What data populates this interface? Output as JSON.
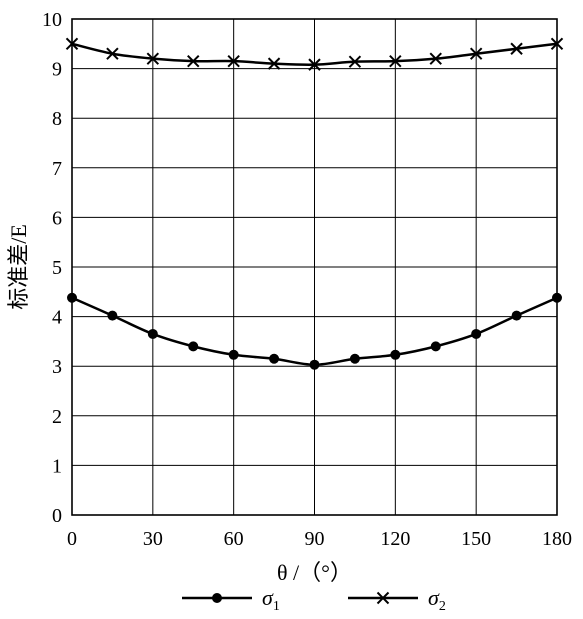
{
  "chart_data": {
    "type": "line",
    "title": "",
    "xlabel": "θ /（°）",
    "ylabel": "标准差/E",
    "xlim": [
      0,
      180
    ],
    "ylim": [
      0,
      10
    ],
    "xticks": [
      0,
      30,
      60,
      90,
      120,
      150,
      180
    ],
    "yticks": [
      0,
      1,
      2,
      3,
      4,
      5,
      6,
      7,
      8,
      9,
      10
    ],
    "grid": true,
    "legend_position": "bottom",
    "x": [
      0,
      15,
      30,
      45,
      60,
      75,
      90,
      105,
      120,
      135,
      150,
      165,
      180
    ],
    "series": [
      {
        "name": "σ1",
        "label_main": "σ",
        "label_sub": "1",
        "marker": "circle",
        "color": "#000000",
        "values": [
          4.38,
          4.02,
          3.65,
          3.4,
          3.23,
          3.15,
          3.03,
          3.15,
          3.23,
          3.4,
          3.65,
          4.02,
          4.38
        ]
      },
      {
        "name": "σ2",
        "label_main": "σ",
        "label_sub": "2",
        "marker": "cross",
        "color": "#000000",
        "values": [
          9.5,
          9.3,
          9.2,
          9.15,
          9.15,
          9.1,
          9.08,
          9.14,
          9.15,
          9.2,
          9.3,
          9.4,
          9.5
        ]
      }
    ]
  }
}
